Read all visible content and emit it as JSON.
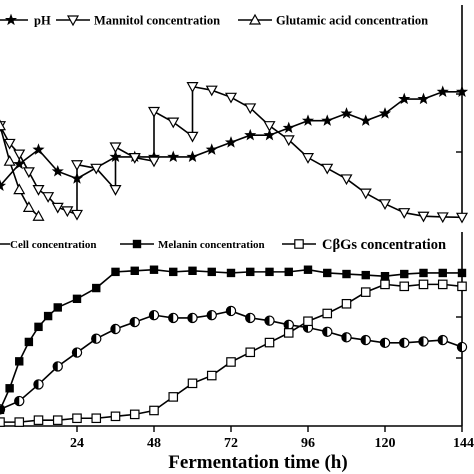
{
  "chart_data": [
    {
      "type": "line",
      "panel": "top",
      "xlim": [
        0,
        144
      ],
      "legend_placement": "top",
      "series": [
        {
          "name": "pH",
          "marker": "star",
          "x": [
            0,
            6,
            12,
            18,
            24,
            36,
            42,
            48,
            54,
            60,
            66,
            72,
            78,
            84,
            90,
            96,
            102,
            108,
            114,
            120,
            126,
            132,
            138,
            144
          ],
          "values": [
            5.0,
            5.3,
            5.5,
            5.2,
            5.1,
            5.4,
            5.4,
            5.4,
            5.4,
            5.4,
            5.5,
            5.6,
            5.7,
            5.7,
            5.8,
            5.9,
            5.9,
            6.0,
            5.9,
            6.0,
            6.2,
            6.2,
            6.3,
            6.3
          ]
        },
        {
          "name": "Mannitol concentration",
          "marker": "triangle-down",
          "x": [
            0,
            3,
            6,
            9,
            12,
            15,
            18,
            21,
            24,
            24,
            30,
            36,
            36,
            42,
            48,
            48,
            54,
            60,
            60,
            66,
            72,
            78,
            84,
            90,
            96,
            102,
            108,
            114,
            120,
            126,
            132,
            138,
            144
          ],
          "values": [
            26,
            21,
            18,
            13,
            8,
            6,
            3,
            2,
            1,
            15,
            14,
            8,
            20,
            17,
            16,
            30,
            27,
            23,
            37,
            36,
            34,
            31,
            26,
            22,
            17,
            14,
            11,
            7,
            4,
            1.5,
            0.5,
            0.3,
            0.2
          ]
        },
        {
          "name": "Glutamic acid concentration",
          "marker": "triangle-up",
          "x": [
            0,
            3,
            6,
            9,
            12
          ],
          "values": [
            26,
            16,
            8,
            3,
            0.5
          ]
        }
      ]
    },
    {
      "type": "line",
      "panel": "bottom",
      "xlim": [
        0,
        144
      ],
      "xlabel": "Fermentation time (h)",
      "xticks": [
        24,
        48,
        72,
        96,
        120,
        144
      ],
      "legend_placement": "top",
      "series": [
        {
          "name": "Cell concentration",
          "marker": "half-filled-circle",
          "x": [
            0,
            6,
            12,
            18,
            24,
            30,
            36,
            42,
            48,
            54,
            60,
            66,
            72,
            78,
            84,
            90,
            96,
            102,
            108,
            114,
            120,
            126,
            132,
            138,
            144
          ],
          "values": [
            1.2,
            1.8,
            3.0,
            4.3,
            5.3,
            6.3,
            7.0,
            7.5,
            8.0,
            7.8,
            7.8,
            8.0,
            8.3,
            7.8,
            7.6,
            7.3,
            7.1,
            6.8,
            6.4,
            6.2,
            6.0,
            6.0,
            6.1,
            6.2,
            5.7
          ]
        },
        {
          "name": "Melanin concentration",
          "marker": "filled-square",
          "x": [
            0,
            3,
            6,
            9,
            12,
            15,
            18,
            24,
            30,
            36,
            42,
            48,
            54,
            60,
            66,
            72,
            78,
            84,
            90,
            96,
            102,
            108,
            114,
            120,
            126,
            132,
            138,
            144
          ],
          "values": [
            1.5,
            3.5,
            6.0,
            7.8,
            9.2,
            10.2,
            11.0,
            11.8,
            12.8,
            14.3,
            14.4,
            14.5,
            14.3,
            14.4,
            14.3,
            14.2,
            14.3,
            14.3,
            14.3,
            14.5,
            14.2,
            14.1,
            14.0,
            13.9,
            14.1,
            14.2,
            14.2,
            14.2
          ]
        },
        {
          "name": "CβGs concentration",
          "marker": "open-square",
          "x": [
            0,
            6,
            12,
            18,
            24,
            30,
            36,
            42,
            48,
            54,
            60,
            66,
            72,
            78,
            84,
            90,
            96,
            102,
            108,
            114,
            120,
            126,
            132,
            138,
            144
          ],
          "values": [
            0.2,
            0.2,
            0.3,
            0.3,
            0.4,
            0.4,
            0.5,
            0.6,
            0.8,
            1.5,
            2.2,
            2.6,
            3.3,
            3.8,
            4.3,
            4.8,
            5.4,
            5.8,
            6.3,
            6.9,
            7.3,
            7.2,
            7.3,
            7.3,
            7.2
          ]
        }
      ]
    }
  ]
}
